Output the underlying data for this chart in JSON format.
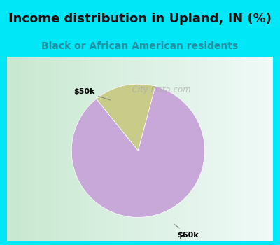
{
  "title": "Income distribution in Upland, IN (%)",
  "subtitle": "Black or African American residents",
  "slices": [
    0.15,
    0.85
  ],
  "labels": [
    "$50k",
    "$60k"
  ],
  "colors": [
    "#c8cc88",
    "#c8a8d8"
  ],
  "header_bg": "#00e8f8",
  "title_color": "#111111",
  "subtitle_color": "#2090a0",
  "title_fontsize": 13,
  "subtitle_fontsize": 10,
  "label_fontsize": 8,
  "watermark_text": "City-Data.com",
  "startangle": 75,
  "chart_border_color": "#00e8f8",
  "chart_bg_left": "#c8e8d0",
  "chart_bg_right": "#f0faf8"
}
